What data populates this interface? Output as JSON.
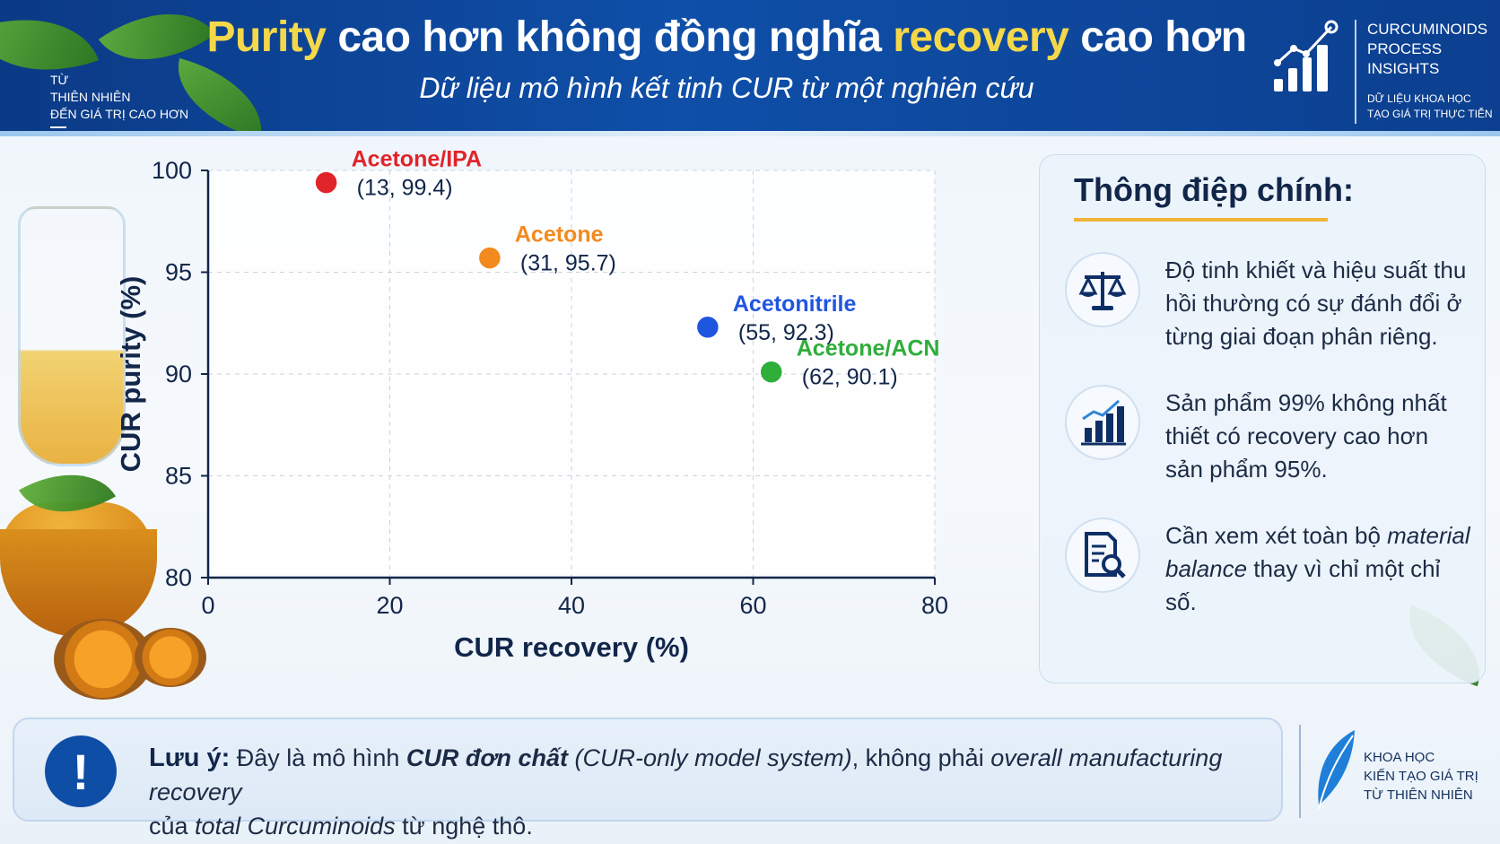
{
  "header": {
    "title_part1": "Purity",
    "title_part2": " cao hơn không đồng nghĩa ",
    "title_part3": "recovery",
    "title_part4": " cao hơn",
    "subtitle": "Dữ liệu mô hình kết tinh CUR từ một nghiên cứu",
    "tagline_left": [
      "TỪ",
      "THIÊN NHIÊN",
      "ĐẾN GIÁ TRỊ CAO HƠN"
    ],
    "brand_name": [
      "CURCUMINOIDS",
      "PROCESS",
      "INSIGHTS"
    ],
    "brand_sub": [
      "DỮ LIỆU KHOA HỌC",
      "TẠO GIÁ TRỊ THỰC TIỄN"
    ]
  },
  "chart_data": {
    "type": "scatter",
    "xlabel": "CUR recovery (%)",
    "ylabel": "CUR purity (%)",
    "xlim": [
      0,
      80
    ],
    "ylim": [
      80,
      100
    ],
    "xticks": [
      0,
      20,
      40,
      60,
      80
    ],
    "yticks": [
      80,
      85,
      90,
      95,
      100
    ],
    "grid": true,
    "points": [
      {
        "name": "Acetone/IPA",
        "x": 13,
        "y": 99.4,
        "label": "(13, 99.4)",
        "color": "#e0242a"
      },
      {
        "name": "Acetone",
        "x": 31,
        "y": 95.7,
        "label": "(31, 95.7)",
        "color": "#f28a1e"
      },
      {
        "name": "Acetonitrile",
        "x": 55,
        "y": 92.3,
        "label": "(55, 92.3)",
        "color": "#1f56e0"
      },
      {
        "name": "Acetone/ACN",
        "x": 62,
        "y": 90.1,
        "label": "(62, 90.1)",
        "color": "#2fae3a"
      }
    ]
  },
  "panel": {
    "title": "Thông điệp chính:",
    "messages": [
      {
        "icon": "balance-scale-icon",
        "text": "Độ tinh khiết và hiệu suất thu hồi thường có sự đánh đổi ở từng giai đoạn phân riêng."
      },
      {
        "icon": "bar-chart-icon",
        "text": "Sản phẩm 99% không nhất thiết có recovery cao hơn sản phẩm 95%."
      },
      {
        "icon": "document-search-icon",
        "text_a": "Cần xem xét toàn bộ ",
        "text_b": "material balance",
        "text_c": " thay vì chỉ một chỉ số."
      }
    ]
  },
  "note": {
    "label": "Lưu ý:",
    "t1": " Đây là mô hình ",
    "t2": "CUR đơn chất",
    "t3": " (CUR-only model system)",
    "t4": ", không phải ",
    "t5": "overall manufacturing recovery",
    "t6": "của ",
    "t7": "total Curcuminoids",
    "t8": " từ nghệ thô."
  },
  "footer_brand": [
    "KHOA HỌC",
    "KIẾN TẠO GIÁ TRỊ",
    "TỪ THIÊN NHIÊN"
  ]
}
